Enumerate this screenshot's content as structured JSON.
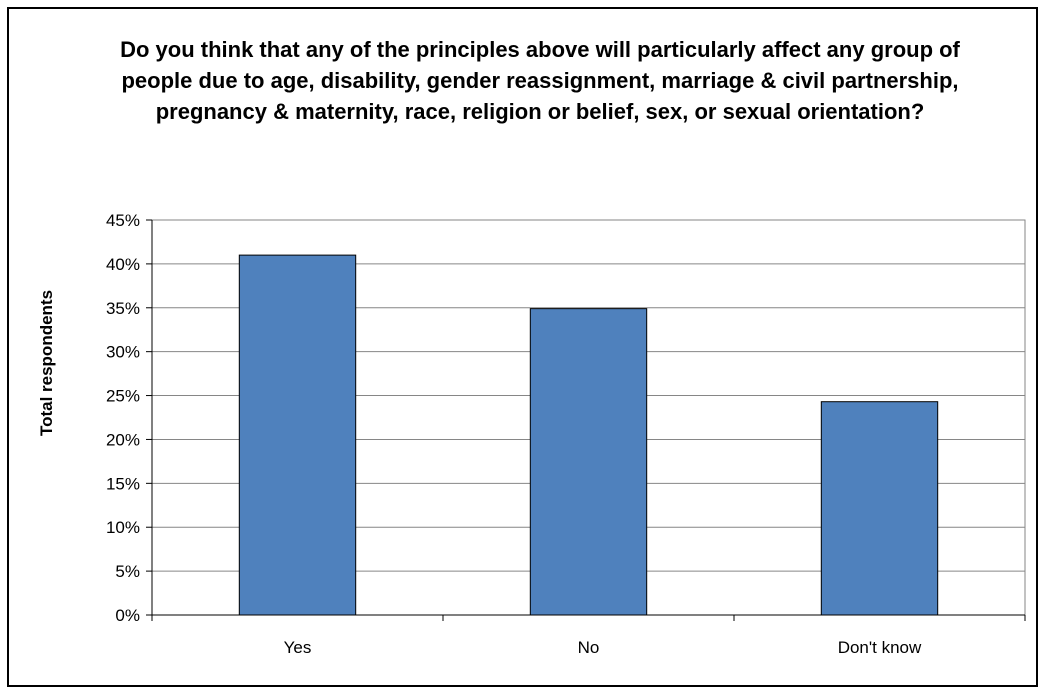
{
  "chart_data": {
    "type": "bar",
    "title": "Do you think that any of the principles above will particularly affect any group of people due to age, disability, gender reassignment, marriage & civil partnership, pregnancy & maternity, race, religion or belief, sex, or sexual orientation?",
    "ylabel": "Total respondents",
    "xlabel": "",
    "categories": [
      "Yes",
      "No",
      "Don't know"
    ],
    "values": [
      0.41,
      0.349,
      0.243
    ],
    "ylim": [
      0,
      0.45
    ],
    "ytick_labels": [
      "0%",
      "5%",
      "10%",
      "15%",
      "20%",
      "25%",
      "30%",
      "35%",
      "40%",
      "45%"
    ],
    "grid": true,
    "bar_color": "#4f81bd",
    "bar_edge_color": "#000000"
  }
}
